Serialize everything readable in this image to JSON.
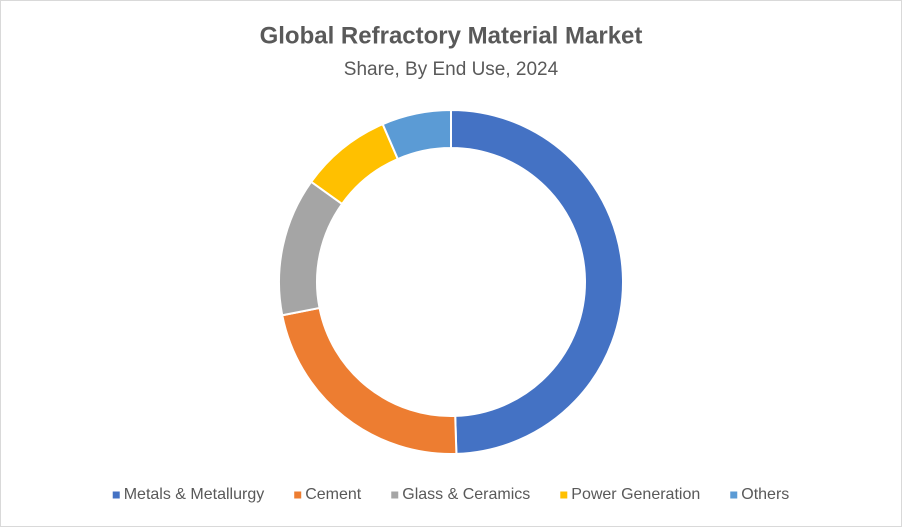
{
  "chart_data": {
    "type": "donut",
    "title": "Global Refractory Material Market",
    "subtitle": "Share, By End Use, 2024",
    "categories": [
      "Metals & Metallurgy",
      "Cement",
      "Glass & Ceramics",
      "Power Generation",
      "Others"
    ],
    "values": [
      49.5,
      22.4,
      13,
      8.6,
      6.5
    ],
    "colors": [
      "#4472c4",
      "#ed7d31",
      "#a5a5a5",
      "#ffc000",
      "#5b9bd5"
    ],
    "legend": "bottom"
  }
}
